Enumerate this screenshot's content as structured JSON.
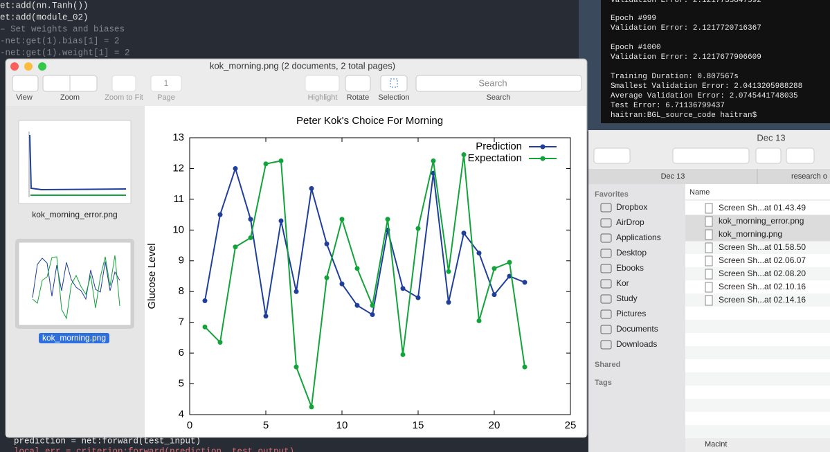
{
  "editor": {
    "top_lines": [
      "et:add(nn.Tanh())",
      "et:add(module_02)",
      "– Set weights and biases",
      "-net:get(1).bias[1] = 2",
      "-net:get(1).weight[1] = 2"
    ],
    "bottom_lines": [
      "prediction = net:forward(test_input)",
      "local err = criterion:forward(prediction, test_output)"
    ]
  },
  "terminal": {
    "lines": [
      "Validation Error: 2.1217735847592",
      "Epoch #999",
      "Validation Error: 2.1217720716367",
      "Epoch #1000",
      "Validation Error: 2.1217677906609",
      "Training Duration: 0.807567s",
      "Smallest Validation Error: 2.0413205988288",
      "Average Validation Error: 2.0745441748035",
      "Test Error: 6.71136799437",
      "haitran:BGL_source_code haitran$"
    ]
  },
  "preview": {
    "title": "kok_morning.png (2 documents, 2 total pages)",
    "toolbar": {
      "view": "View",
      "zoom": "Zoom",
      "zoom_to_fit": "Zoom to Fit",
      "page_number": "1",
      "page": "Page",
      "highlight": "Highlight",
      "rotate": "Rotate",
      "selection": "Selection",
      "search_placeholder": "Search",
      "search": "Search"
    },
    "thumbnails": [
      "kok_morning_error.png",
      "kok_morning.png"
    ]
  },
  "finder": {
    "title": "Dec 13",
    "tabs": [
      "Dec 13",
      "research o"
    ],
    "favorites_heading": "Favorites",
    "favorites": [
      "Dropbox",
      "AirDrop",
      "Applications",
      "Desktop",
      "Ebooks",
      "Kor",
      "Study",
      "Pictures",
      "Documents",
      "Downloads"
    ],
    "shared": "Shared",
    "tags": "Tags",
    "column": "Name",
    "files": [
      "Screen Sh...at 01.43.49",
      "kok_morning_error.png",
      "kok_morning.png",
      "Screen Sh...at 01.58.50",
      "Screen Sh...at 02.06.07",
      "Screen Sh...at 02.08.20",
      "Screen Sh...at 02.10.16",
      "Screen Sh...at 02.14.16"
    ],
    "path": "Macint"
  },
  "chart_data": {
    "type": "line",
    "title": "Peter Kok's Choice For Morning",
    "y_label": "Glucose Level",
    "x": [
      1,
      2,
      3,
      4,
      5,
      6,
      7,
      8,
      9,
      10,
      11,
      12,
      13,
      14,
      15,
      16,
      17,
      18,
      19,
      20,
      21,
      22
    ],
    "series": [
      {
        "name": "Prediction",
        "color": "#1f3f9a",
        "values": [
          7.7,
          10.5,
          12.0,
          10.35,
          7.2,
          10.3,
          8.0,
          11.35,
          9.55,
          8.25,
          7.55,
          7.25,
          10.0,
          8.1,
          7.8,
          11.85,
          7.65,
          9.9,
          9.25,
          7.9,
          8.5,
          8.3
        ]
      },
      {
        "name": "Expectation",
        "color": "#12a33a",
        "values": [
          6.85,
          6.35,
          9.45,
          9.75,
          12.15,
          12.25,
          5.55,
          4.25,
          8.45,
          10.35,
          8.75,
          7.55,
          10.35,
          5.95,
          10.05,
          12.25,
          8.65,
          12.45,
          7.05,
          8.75,
          8.95,
          5.55
        ]
      }
    ],
    "xlim": [
      0,
      25
    ],
    "xticks": [
      0,
      5,
      10,
      15,
      20,
      25
    ],
    "ylim": [
      4,
      13
    ],
    "yticks": [
      4,
      5,
      6,
      7,
      8,
      9,
      10,
      11,
      12,
      13
    ],
    "grid": false,
    "legend": "top-right"
  }
}
